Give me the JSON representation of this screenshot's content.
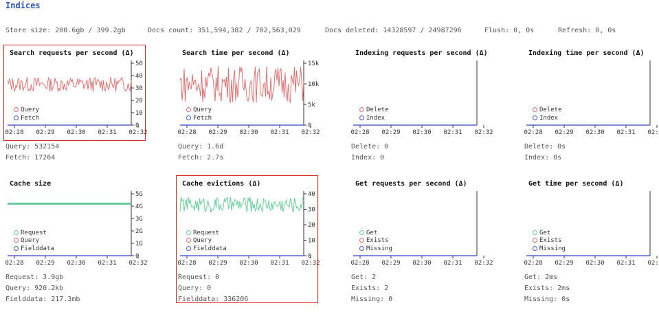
{
  "header": {
    "title": "Indices"
  },
  "stats": [
    {
      "label": "Store size: 200.6gb / 399.2gb"
    },
    {
      "label": "Docs count: 351,594,382 / 702,563,029"
    },
    {
      "label": "Docs deleted: 14328597 / 24987296"
    },
    {
      "label": "Flush: 0, 0s"
    },
    {
      "label": "Refresh: 0, 0s"
    }
  ],
  "x_ticks": [
    "02:28",
    "02:29",
    "02:30",
    "02:31",
    "02:32"
  ],
  "colors": {
    "red": "#e07070",
    "blue": "#4a58d8",
    "green": "#66cc99",
    "axis": "#333",
    "frame": "#d22"
  },
  "panels": [
    {
      "title": "Search requests per second (Δ)",
      "highlight": true,
      "yticks": [
        "0",
        "10",
        "20",
        "30",
        "40",
        "50"
      ],
      "ymax": 50,
      "series_level": 33,
      "series_amp": 6,
      "series_color": "red",
      "legend": [
        {
          "name": "Query",
          "color": "red"
        },
        {
          "name": "Fetch",
          "color": "blue"
        }
      ],
      "readouts": [
        "Query: 532154",
        "Fetch: 17264"
      ]
    },
    {
      "title": "Search time per second (Δ)",
      "highlight": false,
      "yticks": [
        "0",
        "5k",
        "10k",
        "15k"
      ],
      "ymax": 15,
      "series_level": 10,
      "series_amp": 4.5,
      "series_color": "red",
      "legend": [
        {
          "name": "Query",
          "color": "red"
        },
        {
          "name": "Fetch",
          "color": "blue"
        }
      ],
      "readouts": [
        "Query: 1.6d",
        "Fetch: 2.7s"
      ]
    },
    {
      "title": "Indexing requests per second (Δ)",
      "highlight": false,
      "yticks": [],
      "ymax": 1,
      "series_level": 0,
      "series_amp": 0,
      "series_color": "red",
      "legend": [
        {
          "name": "Delete",
          "color": "red"
        },
        {
          "name": "Index",
          "color": "blue"
        }
      ],
      "readouts": [
        "Delete: 0",
        "Index: 0"
      ]
    },
    {
      "title": "Indexing time per second (Δ)",
      "highlight": false,
      "yticks": [],
      "ymax": 1,
      "series_level": 0,
      "series_amp": 0,
      "series_color": "red",
      "legend": [
        {
          "name": "Delete",
          "color": "red"
        },
        {
          "name": "Index",
          "color": "blue"
        }
      ],
      "readouts": [
        "Delete: 0s",
        "Index: 0s"
      ]
    },
    {
      "title": "Cache size",
      "highlight": false,
      "yticks": [
        "0",
        "1G",
        "2G",
        "3G",
        "4G",
        "5G"
      ],
      "ymax": 5,
      "series_level": 4.2,
      "series_amp": 0,
      "series_color": "green",
      "legend": [
        {
          "name": "Request",
          "color": "green"
        },
        {
          "name": "Query",
          "color": "red"
        },
        {
          "name": "Fielddata",
          "color": "blue"
        }
      ],
      "readouts": [
        "Request: 3.9gb",
        "Query: 920.2kb",
        "Fielddata: 217.3mb"
      ]
    },
    {
      "title": "Cache evictions (Δ)",
      "highlight": true,
      "yticks": [
        "0",
        "10",
        "20",
        "30",
        "40"
      ],
      "ymax": 40,
      "series_level": 33,
      "series_amp": 5,
      "series_color": "green",
      "legend": [
        {
          "name": "Request",
          "color": "green"
        },
        {
          "name": "Query",
          "color": "red"
        },
        {
          "name": "Fielddata",
          "color": "blue"
        }
      ],
      "readouts": [
        "Request: 0",
        "Query: 0",
        "Fielddata: 336206"
      ]
    },
    {
      "title": "Get requests per second (Δ)",
      "highlight": false,
      "yticks": [],
      "ymax": 1,
      "series_level": 0,
      "series_amp": 0,
      "series_color": "green",
      "legend": [
        {
          "name": "Get",
          "color": "green"
        },
        {
          "name": "Exists",
          "color": "red"
        },
        {
          "name": "Missing",
          "color": "blue"
        }
      ],
      "readouts": [
        "Get: 2",
        "Exists: 2",
        "Missing: 0"
      ]
    },
    {
      "title": "Get time per second (Δ)",
      "highlight": false,
      "yticks": [],
      "ymax": 1,
      "series_level": 0,
      "series_amp": 0,
      "series_color": "green",
      "legend": [
        {
          "name": "Get",
          "color": "green"
        },
        {
          "name": "Exists",
          "color": "red"
        },
        {
          "name": "Missing",
          "color": "blue"
        }
      ],
      "readouts": [
        "Get: 2ms",
        "Exists: 2ms",
        "Missing: 0s"
      ]
    }
  ]
}
